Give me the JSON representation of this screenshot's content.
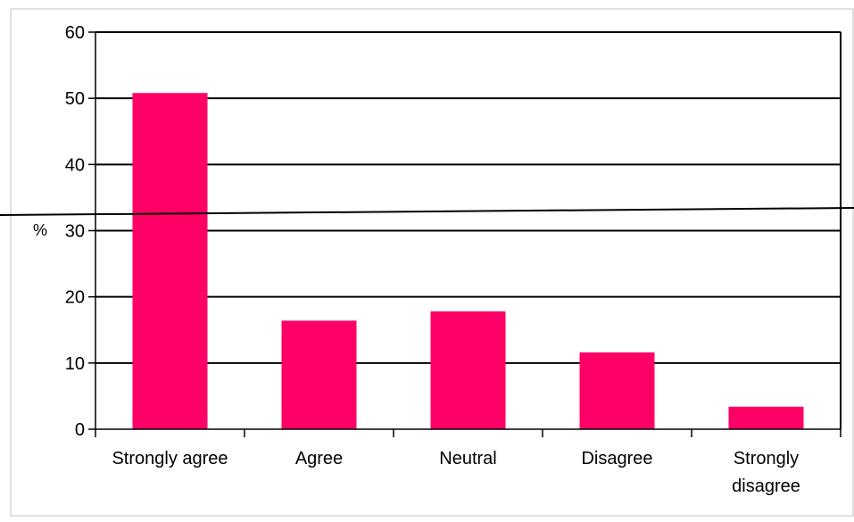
{
  "chart_data": {
    "type": "bar",
    "categories": [
      "Strongly agree",
      "Agree",
      "Neutral",
      "Disagree",
      "Strongly disagree"
    ],
    "category_label_lines": [
      [
        "Strongly agree"
      ],
      [
        "Agree"
      ],
      [
        "Neutral"
      ],
      [
        "Disagree"
      ],
      [
        "Strongly",
        "disagree"
      ]
    ],
    "values": [
      50.8,
      16.4,
      17.8,
      11.6,
      3.4
    ],
    "title": "",
    "xlabel": "",
    "ylabel": "%",
    "ylim": [
      0,
      60
    ],
    "yticks": [
      0,
      10,
      20,
      30,
      40,
      50,
      60
    ],
    "grid": true,
    "legend": "none",
    "colors": {
      "bar": "#FF0066",
      "grid": "#000000",
      "axis": "#000000"
    }
  }
}
